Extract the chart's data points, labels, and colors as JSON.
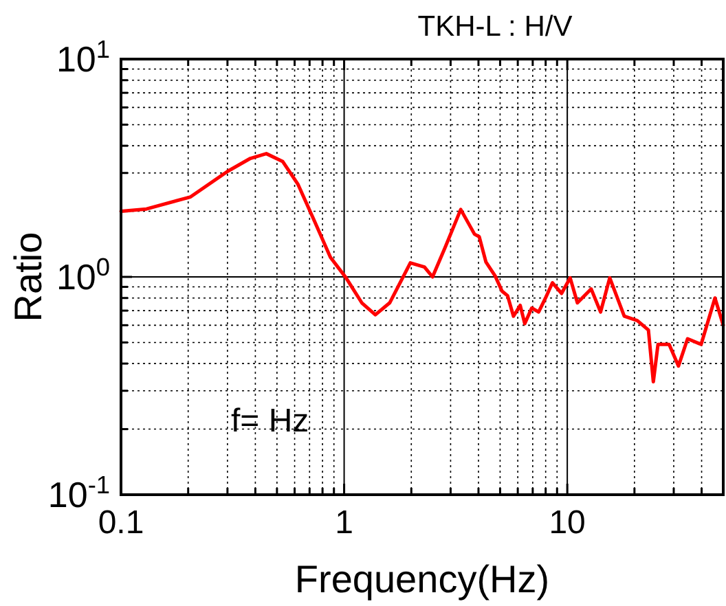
{
  "chart_data": {
    "type": "line",
    "title": "TKH-L : H/V",
    "xlabel": "Frequency(Hz)",
    "ylabel": "Ratio",
    "log": "xy",
    "grid": true,
    "marker": "none",
    "line_style": "solid",
    "annotations": [
      "f= Hz"
    ],
    "xlim": [
      0.1,
      50
    ],
    "ylim": [
      0.1,
      10
    ],
    "xticks": [
      {
        "value": 0.1,
        "label": "0.1"
      },
      {
        "value": 0.2,
        "label": null
      },
      {
        "value": 0.3,
        "label": null
      },
      {
        "value": 0.4,
        "label": null
      },
      {
        "value": 0.5,
        "label": null
      },
      {
        "value": 0.6,
        "label": null
      },
      {
        "value": 0.7,
        "label": null
      },
      {
        "value": 0.8,
        "label": null
      },
      {
        "value": 0.9,
        "label": null
      },
      1,
      {
        "value": 2,
        "label": null
      },
      {
        "value": 3,
        "label": null
      },
      {
        "value": 4,
        "label": null
      },
      {
        "value": 5,
        "label": null
      },
      {
        "value": 6,
        "label": null
      },
      {
        "value": 7,
        "label": null
      },
      {
        "value": 8,
        "label": null
      },
      {
        "value": 9,
        "label": null
      },
      10,
      {
        "value": 20,
        "label": null
      },
      {
        "value": 30,
        "label": null
      },
      {
        "value": 40,
        "label": null
      },
      {
        "value": 50,
        "label": null
      }
    ],
    "yticks": [
      {
        "value": 0.1,
        "label": "10$^{-1}$"
      },
      {
        "value": 0.2,
        "label": null
      },
      {
        "value": 0.3,
        "label": null
      },
      {
        "value": 0.4,
        "label": null
      },
      {
        "value": 0.5,
        "label": null
      },
      {
        "value": 0.6,
        "label": null
      },
      {
        "value": 0.7,
        "label": null
      },
      {
        "value": 0.8,
        "label": null
      },
      {
        "value": 0.9,
        "label": null
      },
      {
        "value": 1,
        "label": "10$^{0}$"
      },
      {
        "value": 2,
        "label": null
      },
      {
        "value": 3,
        "label": null
      },
      {
        "value": 4,
        "label": null
      },
      {
        "value": 5,
        "label": null
      },
      {
        "value": 6,
        "label": null
      },
      {
        "value": 7,
        "label": null
      },
      {
        "value": 8,
        "label": null
      },
      {
        "value": 9,
        "label": null
      },
      {
        "value": 10,
        "label": "10$^{1}$"
      }
    ],
    "series": [
      {
        "color": "#ff0000",
        "x": [
          0.1,
          0.13,
          0.205,
          0.3,
          0.38,
          0.448,
          0.53,
          0.62,
          0.735,
          0.868,
          1.02,
          1.2,
          1.38,
          1.6,
          1.98,
          2.29,
          2.49,
          2.83,
          3.33,
          3.84,
          4.03,
          4.32,
          4.75,
          5.1,
          5.4,
          5.74,
          6.15,
          6.45,
          6.93,
          7.44,
          7.99,
          8.58,
          9.43,
          10.3,
          11.1,
          12.8,
          14.1,
          15.5,
          18.0,
          20.6,
          23.1,
          24.3,
          25.5,
          28.6,
          31.5,
          34.6,
          39.8,
          45.9,
          50
        ],
        "values": [
          2.0,
          2.05,
          2.33,
          3.05,
          3.5,
          3.68,
          3.39,
          2.67,
          1.81,
          1.23,
          0.99,
          0.76,
          0.67,
          0.76,
          1.16,
          1.11,
          1.0,
          1.36,
          2.04,
          1.57,
          1.53,
          1.17,
          1.01,
          0.86,
          0.82,
          0.66,
          0.74,
          0.61,
          0.72,
          0.69,
          0.8,
          0.94,
          0.84,
          0.99,
          0.76,
          0.88,
          0.69,
          0.99,
          0.66,
          0.63,
          0.57,
          0.33,
          0.49,
          0.49,
          0.39,
          0.52,
          0.49,
          0.8,
          0.6
        ]
      }
    ]
  }
}
